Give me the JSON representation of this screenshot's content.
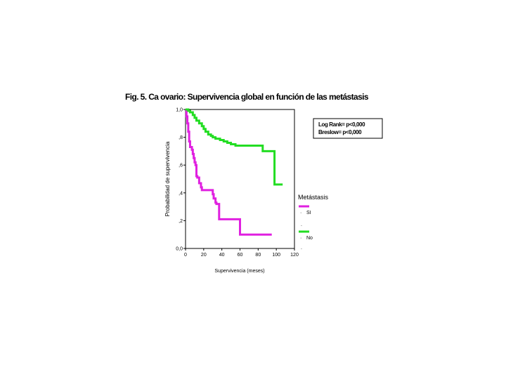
{
  "figure": {
    "title": "Fig. 5. Ca ovario: Supervivencia global en función de las metástasis"
  },
  "annotation": {
    "lines": [
      "Log Rank= p<0,000",
      "Breslow= p<0,000"
    ]
  },
  "legend": {
    "title": "Metástasis",
    "entries": [
      {
        "label": "SI",
        "color": "#e020e0"
      },
      {
        "label": "No",
        "color": "#22dd22"
      }
    ]
  },
  "chart_data": {
    "type": "line",
    "step": true,
    "xlabel": "Supervivencia (meses)",
    "ylabel": "Probabilidad de supervivencia",
    "xlim": [
      0,
      120
    ],
    "ylim": [
      0,
      1
    ],
    "xticks": [
      0,
      20,
      40,
      60,
      80,
      100,
      120
    ],
    "xtick_labels": [
      "0",
      "20",
      "40",
      "60",
      "80",
      "100",
      "120"
    ],
    "yticks": [
      0,
      0.2,
      0.4,
      0.6,
      0.8,
      1.0
    ],
    "ytick_labels": [
      "0,0",
      ",2",
      ",4",
      ",6",
      ",8",
      "1,0"
    ],
    "grid": false,
    "legend_position": "right",
    "series": [
      {
        "name": "SI",
        "color": "#e020e0",
        "x": [
          0,
          1,
          2,
          3,
          4,
          5,
          6,
          7,
          8,
          9,
          10,
          11,
          12,
          13,
          15,
          17,
          18,
          20,
          25,
          30,
          31,
          33,
          34,
          35,
          37,
          40,
          50,
          60,
          70,
          80,
          95
        ],
        "y": [
          1.0,
          0.95,
          0.9,
          0.84,
          0.77,
          0.73,
          0.73,
          0.71,
          0.68,
          0.65,
          0.62,
          0.6,
          0.52,
          0.51,
          0.47,
          0.44,
          0.42,
          0.42,
          0.42,
          0.39,
          0.36,
          0.33,
          0.32,
          0.32,
          0.21,
          0.21,
          0.21,
          0.1,
          0.1,
          0.1,
          0.1
        ]
      },
      {
        "name": "No",
        "color": "#22dd22",
        "x": [
          0,
          3,
          5,
          8,
          10,
          12,
          15,
          18,
          20,
          22,
          25,
          28,
          30,
          33,
          38,
          42,
          46,
          50,
          55,
          60,
          70,
          85,
          90,
          98,
          100,
          107
        ],
        "y": [
          1.0,
          0.99,
          0.98,
          0.96,
          0.94,
          0.92,
          0.9,
          0.88,
          0.86,
          0.84,
          0.82,
          0.81,
          0.8,
          0.79,
          0.78,
          0.77,
          0.76,
          0.75,
          0.74,
          0.74,
          0.74,
          0.7,
          0.7,
          0.46,
          0.46,
          0.46
        ]
      }
    ]
  }
}
